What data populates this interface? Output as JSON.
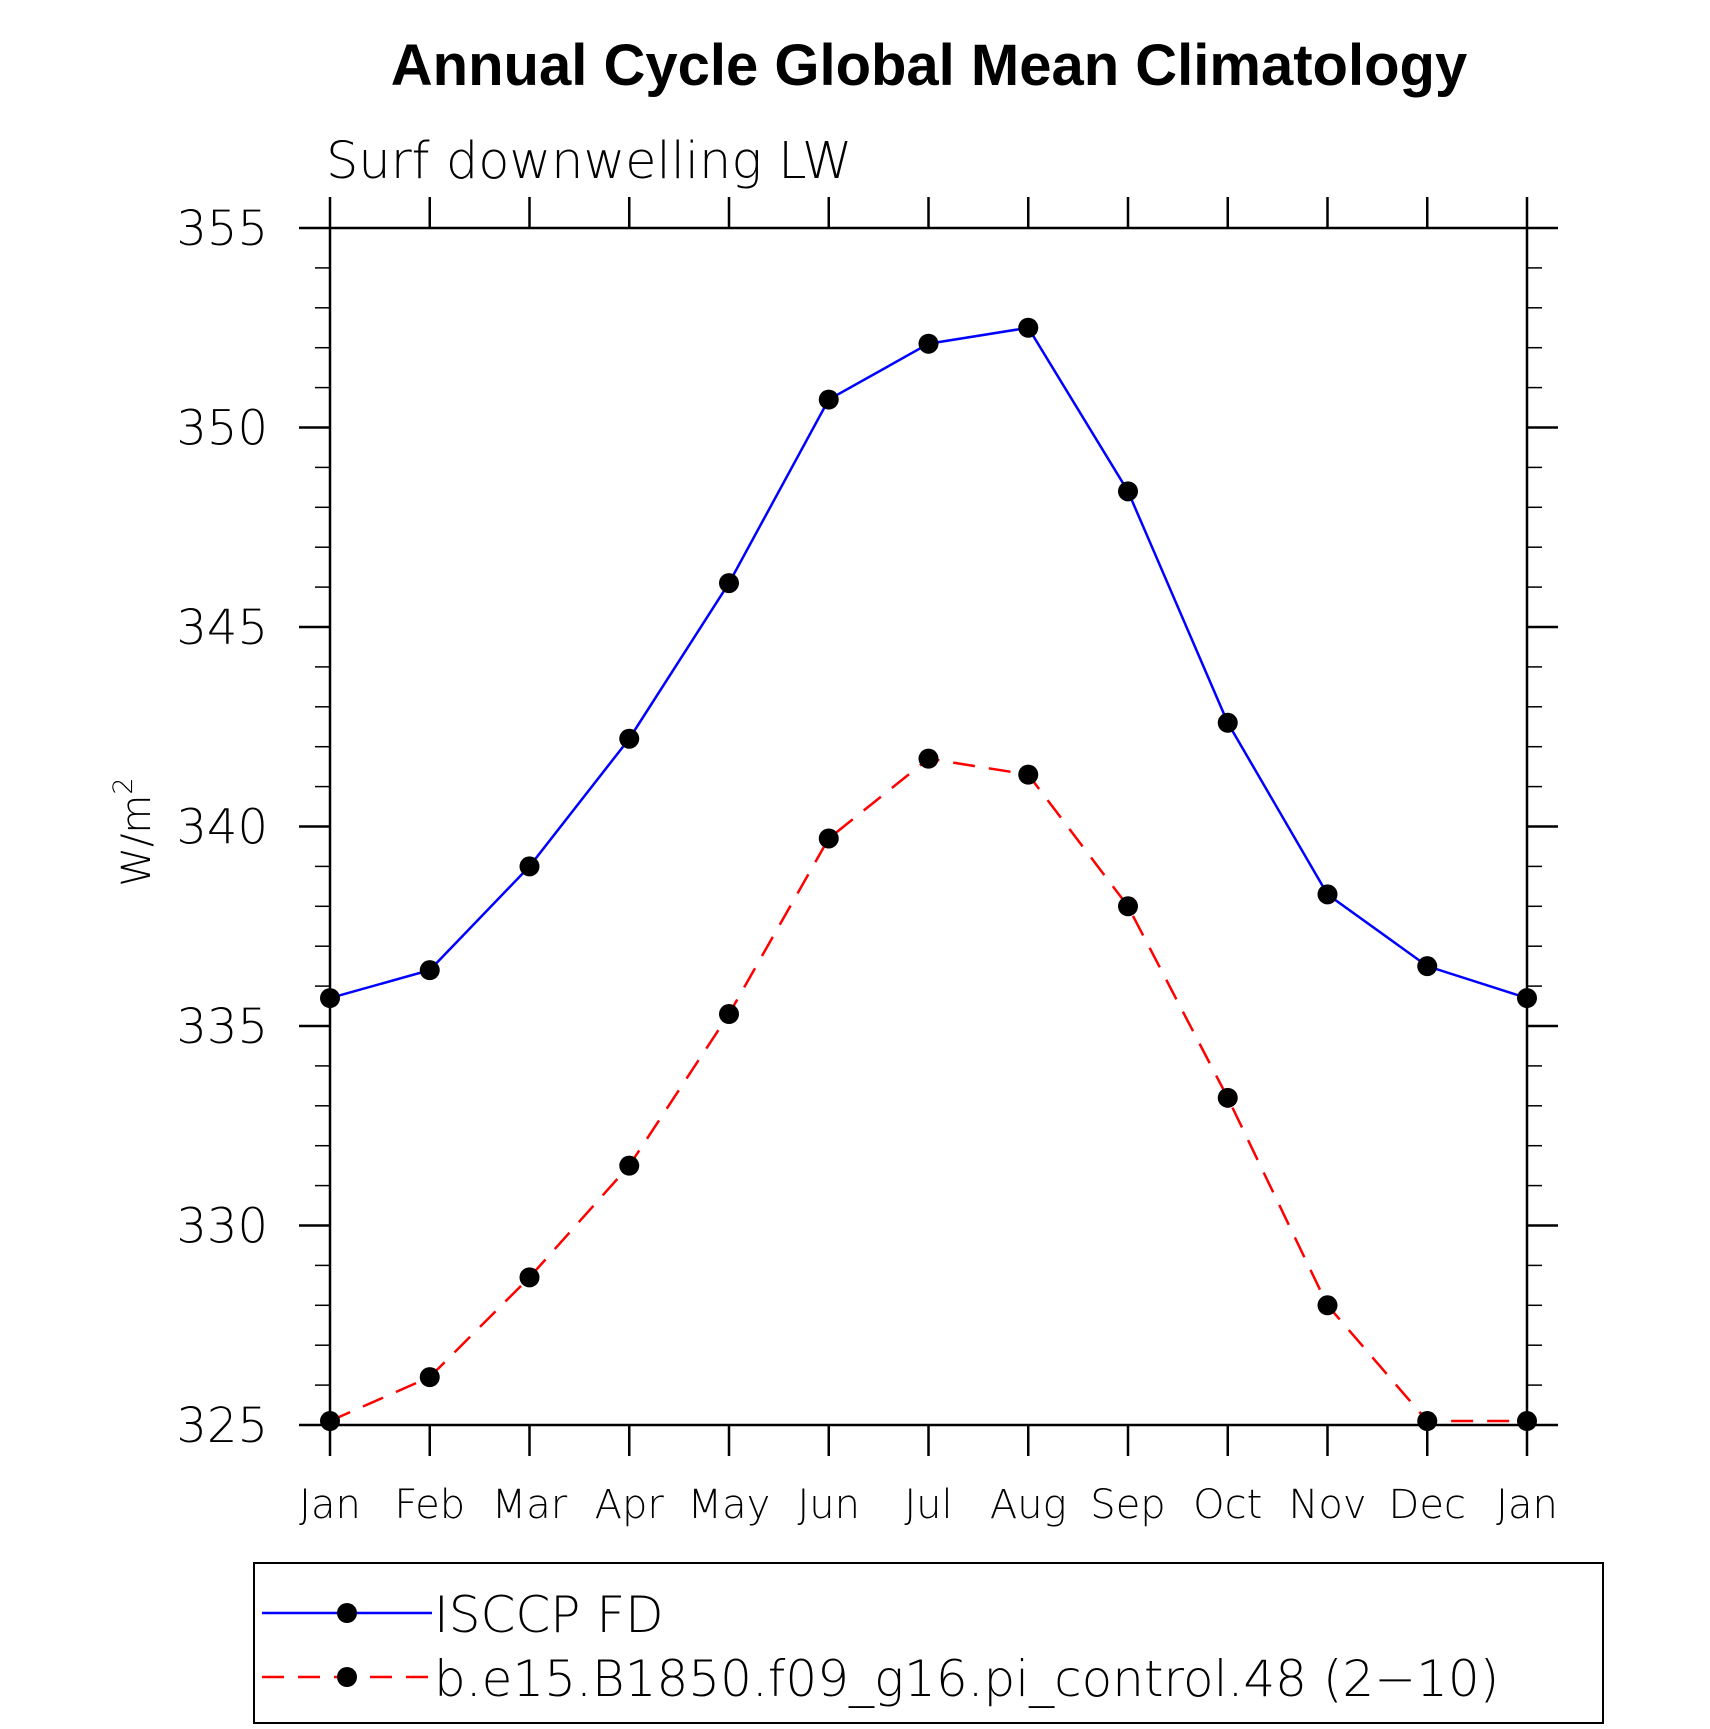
{
  "chart_data": {
    "type": "line",
    "title": "Annual Cycle Global Mean Climatology",
    "subtitle": "Surf downwelling LW",
    "ylabel": "W/m",
    "ylabel_superscript": "2",
    "xlabel": "",
    "ylim": [
      325,
      355
    ],
    "y_major_ticks": [
      325,
      330,
      335,
      340,
      345,
      350,
      355
    ],
    "y_minor_step": 1,
    "categories": [
      "Jan",
      "Feb",
      "Mar",
      "Apr",
      "May",
      "Jun",
      "Jul",
      "Aug",
      "Sep",
      "Oct",
      "Nov",
      "Dec",
      "Jan"
    ],
    "grid": false,
    "legend_position": "bottom",
    "series": [
      {
        "name": "ISCCP FD",
        "color": "#0000ff",
        "dashed": false,
        "values": [
          335.7,
          336.4,
          339.0,
          342.2,
          346.1,
          350.7,
          352.1,
          352.5,
          348.4,
          342.6,
          338.3,
          336.5,
          335.7
        ]
      },
      {
        "name": "b.e15.B1850.f09_g16.pi_control.48 (2−10)",
        "color": "#ff0000",
        "dashed": true,
        "values": [
          325.1,
          326.2,
          328.7,
          331.5,
          335.3,
          339.7,
          341.7,
          341.3,
          338.0,
          333.2,
          328.0,
          325.1,
          325.1
        ]
      }
    ]
  }
}
